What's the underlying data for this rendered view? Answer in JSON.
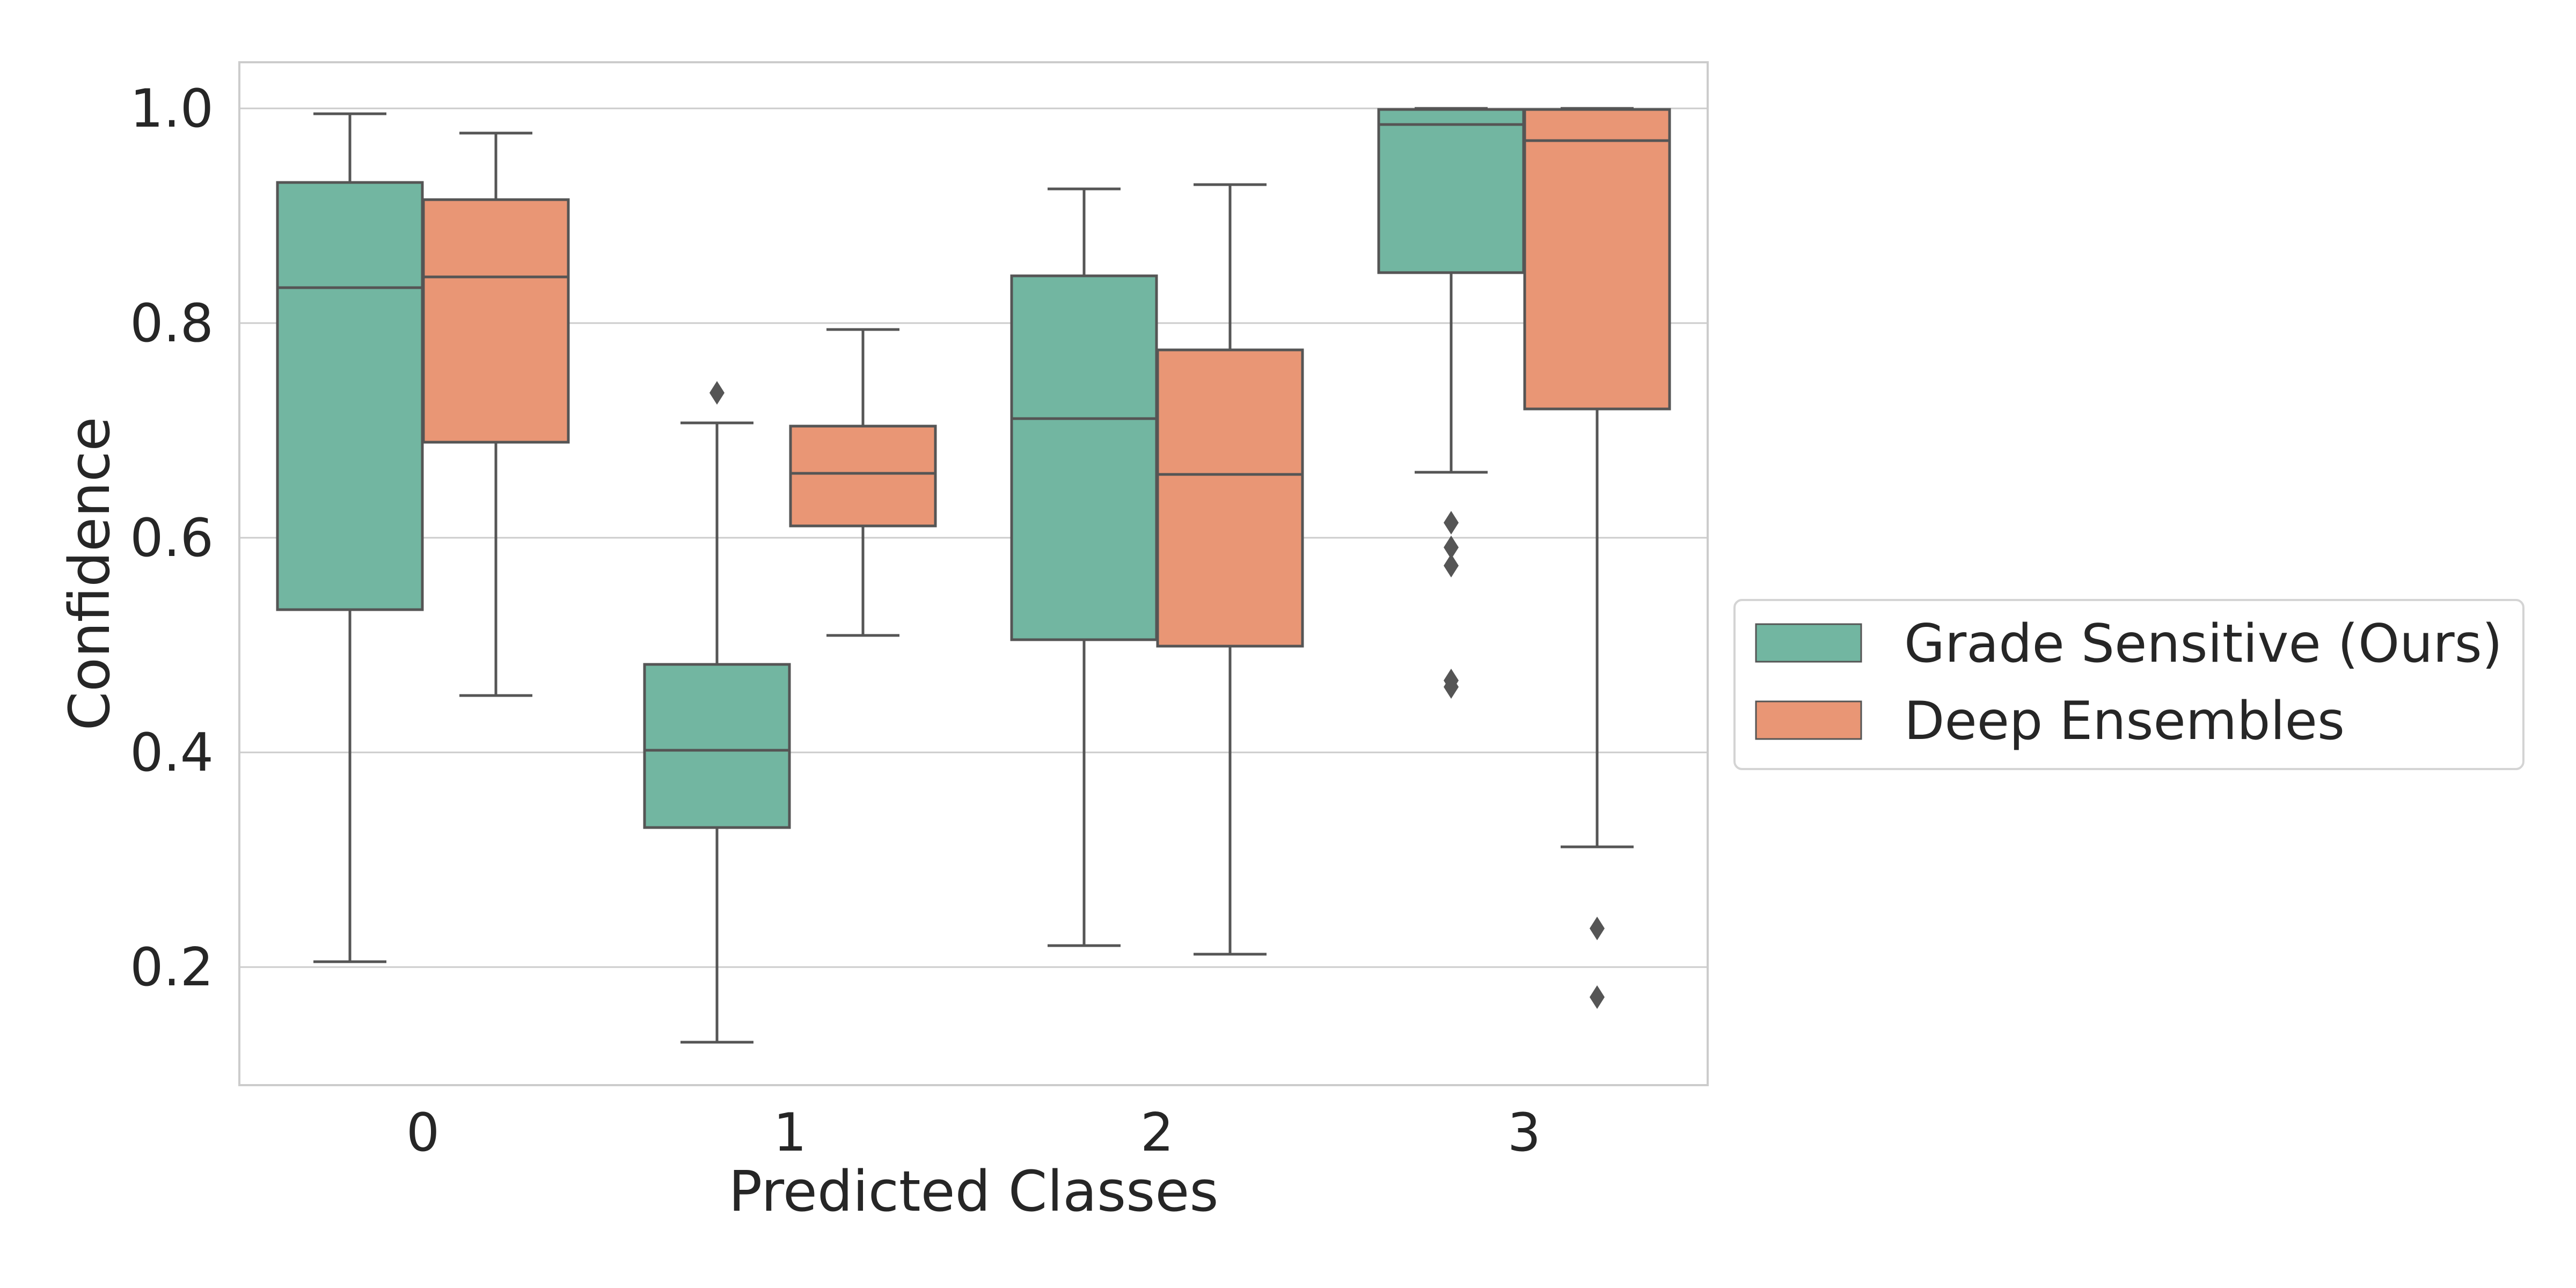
{
  "chart_data": {
    "type": "boxplot",
    "title": "",
    "xlabel": "Predicted Classes",
    "ylabel": "Confidence",
    "ylim": [
      0.09,
      1.043
    ],
    "yticks": [
      0.2,
      0.4,
      0.6,
      0.8,
      1.0
    ],
    "ytick_labels": [
      "0.2",
      "0.4",
      "0.6",
      "0.8",
      "1.0"
    ],
    "categories": [
      "0",
      "1",
      "2",
      "3"
    ],
    "grid": "horizontal",
    "legend_position": "right",
    "series": [
      {
        "name": "Grade Sensitive (Ours)",
        "color": "#72b6a1",
        "boxes": [
          {
            "whislo": 0.205,
            "q1": 0.533,
            "med": 0.833,
            "q3": 0.931,
            "whishi": 0.995,
            "fliers": []
          },
          {
            "whislo": 0.13,
            "q1": 0.33,
            "med": 0.402,
            "q3": 0.482,
            "whishi": 0.707,
            "fliers": [
              0.735
            ]
          },
          {
            "whislo": 0.22,
            "q1": 0.505,
            "med": 0.711,
            "q3": 0.844,
            "whishi": 0.925,
            "fliers": []
          },
          {
            "whislo": 0.661,
            "q1": 0.847,
            "med": 0.985,
            "q3": 0.999,
            "whishi": 1.0,
            "fliers": [
              0.614,
              0.591,
              0.574,
              0.467,
              0.461
            ]
          }
        ]
      },
      {
        "name": "Deep Ensembles",
        "color": "#e99675",
        "boxes": [
          {
            "whislo": 0.453,
            "q1": 0.689,
            "med": 0.843,
            "q3": 0.915,
            "whishi": 0.977,
            "fliers": []
          },
          {
            "whislo": 0.509,
            "q1": 0.611,
            "med": 0.66,
            "q3": 0.704,
            "whishi": 0.794,
            "fliers": []
          },
          {
            "whislo": 0.212,
            "q1": 0.499,
            "med": 0.659,
            "q3": 0.775,
            "whishi": 0.929,
            "fliers": []
          },
          {
            "whislo": 0.312,
            "q1": 0.72,
            "med": 0.97,
            "q3": 0.999,
            "whishi": 1.0,
            "fliers": [
              0.236,
              0.172
            ]
          }
        ]
      }
    ]
  }
}
